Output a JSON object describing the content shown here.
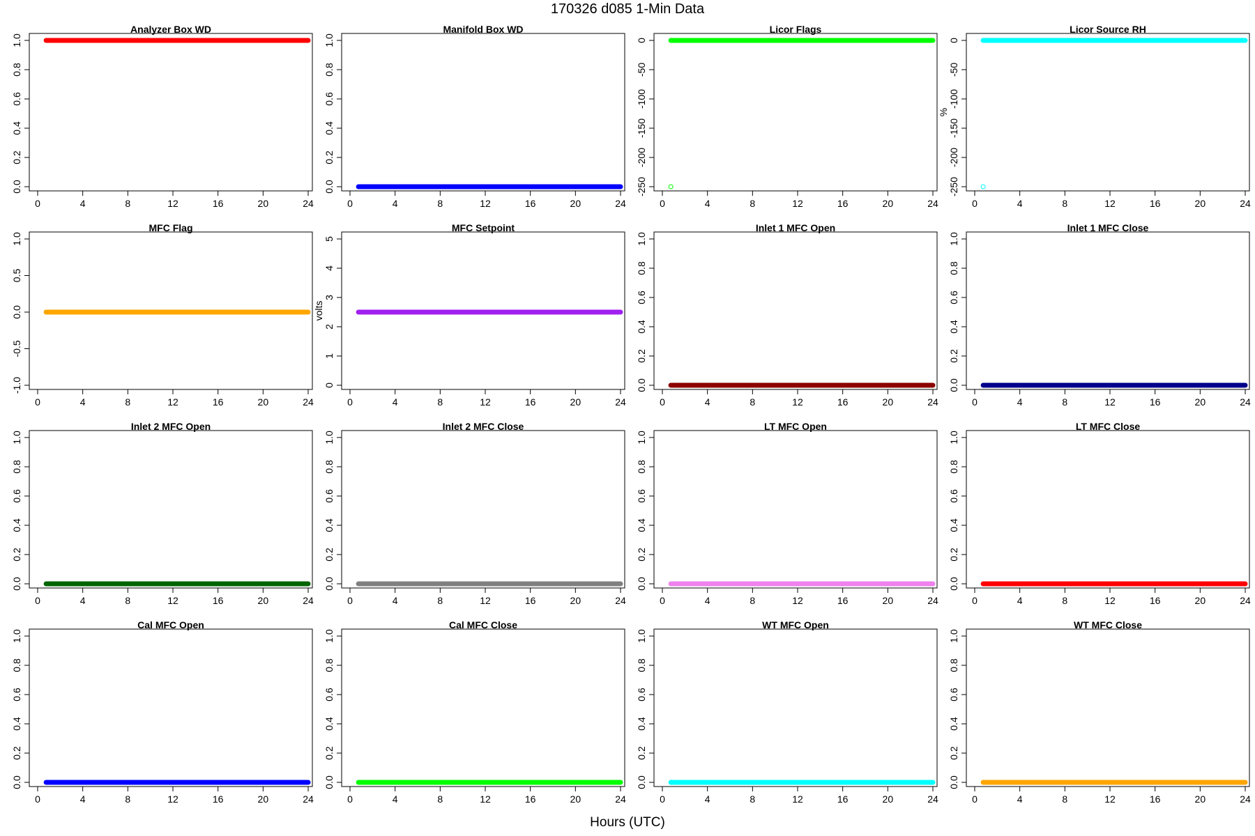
{
  "figure": {
    "title": "170326   d085   1-Min Data",
    "xlabel": "Hours (UTC)"
  },
  "chart_data": [
    {
      "type": "scatter",
      "title": "Analyzer Box WD",
      "ylabel": "",
      "color": "#ff0000",
      "xlim": [
        0,
        24
      ],
      "xticks": [
        0,
        4,
        8,
        12,
        16,
        20,
        24
      ],
      "ylim": [
        0,
        1
      ],
      "yticks": [
        0,
        0.2,
        0.4,
        0.6,
        0.8,
        1
      ],
      "ytick_labels": [
        "0.0",
        "0.2",
        "0.4",
        "0.6",
        "0.8",
        "1.0"
      ],
      "series": [
        {
          "x_start": 0.75,
          "x_end": 24,
          "y": 1
        }
      ],
      "outliers": []
    },
    {
      "type": "scatter",
      "title": "Manifold Box WD",
      "ylabel": "",
      "color": "#0000ff",
      "xlim": [
        0,
        24
      ],
      "xticks": [
        0,
        4,
        8,
        12,
        16,
        20,
        24
      ],
      "ylim": [
        0,
        1
      ],
      "yticks": [
        0,
        0.2,
        0.4,
        0.6,
        0.8,
        1
      ],
      "ytick_labels": [
        "0.0",
        "0.2",
        "0.4",
        "0.6",
        "0.8",
        "1.0"
      ],
      "series": [
        {
          "x_start": 0.75,
          "x_end": 24,
          "y": 0
        }
      ],
      "outliers": []
    },
    {
      "type": "scatter",
      "title": "Licor Flags",
      "ylabel": "",
      "color": "#00ff00",
      "xlim": [
        0,
        24
      ],
      "xticks": [
        0,
        4,
        8,
        12,
        16,
        20,
        24
      ],
      "ylim": [
        -250,
        0
      ],
      "yticks": [
        -250,
        -200,
        -150,
        -100,
        -50,
        0
      ],
      "ytick_labels": [
        "-250",
        "-200",
        "-150",
        "-100",
        "-50",
        "0"
      ],
      "series": [
        {
          "x_start": 0.75,
          "x_end": 24,
          "y": 0
        }
      ],
      "outliers": [
        {
          "x": 0.75,
          "y": -250
        }
      ]
    },
    {
      "type": "scatter",
      "title": "Licor Source RH",
      "ylabel": "%",
      "color": "#00ffff",
      "xlim": [
        0,
        24
      ],
      "xticks": [
        0,
        4,
        8,
        12,
        16,
        20,
        24
      ],
      "ylim": [
        -250,
        0
      ],
      "yticks": [
        -250,
        -200,
        -150,
        -100,
        -50,
        0
      ],
      "ytick_labels": [
        "-250",
        "-200",
        "-150",
        "-100",
        "-50",
        "0"
      ],
      "series": [
        {
          "x_start": 0.75,
          "x_end": 24,
          "y": 0
        }
      ],
      "outliers": [
        {
          "x": 0.75,
          "y": -250
        }
      ]
    },
    {
      "type": "scatter",
      "title": "MFC Flag",
      "ylabel": "",
      "color": "#ffa500",
      "xlim": [
        0,
        24
      ],
      "xticks": [
        0,
        4,
        8,
        12,
        16,
        20,
        24
      ],
      "ylim": [
        -1,
        1
      ],
      "yticks": [
        -1,
        -0.5,
        0,
        0.5,
        1
      ],
      "ytick_labels": [
        "-1.0",
        "-0.5",
        "0.0",
        "0.5",
        "1.0"
      ],
      "series": [
        {
          "x_start": 0.75,
          "x_end": 24,
          "y": 0
        }
      ],
      "outliers": []
    },
    {
      "type": "scatter",
      "title": "MFC Setpoint",
      "ylabel": "volts",
      "color": "#a020f0",
      "xlim": [
        0,
        24
      ],
      "xticks": [
        0,
        4,
        8,
        12,
        16,
        20,
        24
      ],
      "ylim": [
        0,
        5
      ],
      "yticks": [
        0,
        1,
        2,
        3,
        4,
        5
      ],
      "ytick_labels": [
        "0",
        "1",
        "2",
        "3",
        "4",
        "5"
      ],
      "series": [
        {
          "x_start": 0.75,
          "x_end": 24,
          "y": 2.5
        }
      ],
      "outliers": []
    },
    {
      "type": "scatter",
      "title": "Inlet 1 MFC Open",
      "ylabel": "",
      "color": "#8b0000",
      "xlim": [
        0,
        24
      ],
      "xticks": [
        0,
        4,
        8,
        12,
        16,
        20,
        24
      ],
      "ylim": [
        0,
        1
      ],
      "yticks": [
        0,
        0.2,
        0.4,
        0.6,
        0.8,
        1
      ],
      "ytick_labels": [
        "0.0",
        "0.2",
        "0.4",
        "0.6",
        "0.8",
        "1.0"
      ],
      "series": [
        {
          "x_start": 0.75,
          "x_end": 24,
          "y": 0
        }
      ],
      "outliers": []
    },
    {
      "type": "scatter",
      "title": "Inlet 1 MFC Close",
      "ylabel": "",
      "color": "#00008b",
      "xlim": [
        0,
        24
      ],
      "xticks": [
        0,
        4,
        8,
        12,
        16,
        20,
        24
      ],
      "ylim": [
        0,
        1
      ],
      "yticks": [
        0,
        0.2,
        0.4,
        0.6,
        0.8,
        1
      ],
      "ytick_labels": [
        "0.0",
        "0.2",
        "0.4",
        "0.6",
        "0.8",
        "1.0"
      ],
      "series": [
        {
          "x_start": 0.75,
          "x_end": 24,
          "y": 0
        }
      ],
      "outliers": []
    },
    {
      "type": "scatter",
      "title": "Inlet 2 MFC Open",
      "ylabel": "",
      "color": "#006400",
      "xlim": [
        0,
        24
      ],
      "xticks": [
        0,
        4,
        8,
        12,
        16,
        20,
        24
      ],
      "ylim": [
        0,
        1
      ],
      "yticks": [
        0,
        0.2,
        0.4,
        0.6,
        0.8,
        1
      ],
      "ytick_labels": [
        "0.0",
        "0.2",
        "0.4",
        "0.6",
        "0.8",
        "1.0"
      ],
      "series": [
        {
          "x_start": 0.75,
          "x_end": 24,
          "y": 0
        }
      ],
      "outliers": []
    },
    {
      "type": "scatter",
      "title": "Inlet 2 MFC Close",
      "ylabel": "",
      "color": "#808080",
      "xlim": [
        0,
        24
      ],
      "xticks": [
        0,
        4,
        8,
        12,
        16,
        20,
        24
      ],
      "ylim": [
        0,
        1
      ],
      "yticks": [
        0,
        0.2,
        0.4,
        0.6,
        0.8,
        1
      ],
      "ytick_labels": [
        "0.0",
        "0.2",
        "0.4",
        "0.6",
        "0.8",
        "1.0"
      ],
      "series": [
        {
          "x_start": 0.75,
          "x_end": 24,
          "y": 0
        }
      ],
      "outliers": []
    },
    {
      "type": "scatter",
      "title": "LT MFC Open",
      "ylabel": "",
      "color": "#ee82ee",
      "xlim": [
        0,
        24
      ],
      "xticks": [
        0,
        4,
        8,
        12,
        16,
        20,
        24
      ],
      "ylim": [
        0,
        1
      ],
      "yticks": [
        0,
        0.2,
        0.4,
        0.6,
        0.8,
        1
      ],
      "ytick_labels": [
        "0.0",
        "0.2",
        "0.4",
        "0.6",
        "0.8",
        "1.0"
      ],
      "series": [
        {
          "x_start": 0.75,
          "x_end": 24,
          "y": 0
        }
      ],
      "outliers": []
    },
    {
      "type": "scatter",
      "title": "LT MFC Close",
      "ylabel": "",
      "color": "#ff0000",
      "xlim": [
        0,
        24
      ],
      "xticks": [
        0,
        4,
        8,
        12,
        16,
        20,
        24
      ],
      "ylim": [
        0,
        1
      ],
      "yticks": [
        0,
        0.2,
        0.4,
        0.6,
        0.8,
        1
      ],
      "ytick_labels": [
        "0.0",
        "0.2",
        "0.4",
        "0.6",
        "0.8",
        "1.0"
      ],
      "series": [
        {
          "x_start": 0.75,
          "x_end": 24,
          "y": 0
        }
      ],
      "outliers": []
    },
    {
      "type": "scatter",
      "title": "Cal MFC Open",
      "ylabel": "",
      "color": "#0000ff",
      "xlim": [
        0,
        24
      ],
      "xticks": [
        0,
        4,
        8,
        12,
        16,
        20,
        24
      ],
      "ylim": [
        0,
        1
      ],
      "yticks": [
        0,
        0.2,
        0.4,
        0.6,
        0.8,
        1
      ],
      "ytick_labels": [
        "0.0",
        "0.2",
        "0.4",
        "0.6",
        "0.8",
        "1.0"
      ],
      "series": [
        {
          "x_start": 0.75,
          "x_end": 24,
          "y": 0
        }
      ],
      "outliers": []
    },
    {
      "type": "scatter",
      "title": "Cal MFC Close",
      "ylabel": "",
      "color": "#00ff00",
      "xlim": [
        0,
        24
      ],
      "xticks": [
        0,
        4,
        8,
        12,
        16,
        20,
        24
      ],
      "ylim": [
        0,
        1
      ],
      "yticks": [
        0,
        0.2,
        0.4,
        0.6,
        0.8,
        1
      ],
      "ytick_labels": [
        "0.0",
        "0.2",
        "0.4",
        "0.6",
        "0.8",
        "1.0"
      ],
      "series": [
        {
          "x_start": 0.75,
          "x_end": 24,
          "y": 0
        }
      ],
      "outliers": []
    },
    {
      "type": "scatter",
      "title": "WT MFC Open",
      "ylabel": "",
      "color": "#00ffff",
      "xlim": [
        0,
        24
      ],
      "xticks": [
        0,
        4,
        8,
        12,
        16,
        20,
        24
      ],
      "ylim": [
        0,
        1
      ],
      "yticks": [
        0,
        0.2,
        0.4,
        0.6,
        0.8,
        1
      ],
      "ytick_labels": [
        "0.0",
        "0.2",
        "0.4",
        "0.6",
        "0.8",
        "1.0"
      ],
      "series": [
        {
          "x_start": 0.75,
          "x_end": 24,
          "y": 0
        }
      ],
      "outliers": []
    },
    {
      "type": "scatter",
      "title": "WT MFC Close",
      "ylabel": "",
      "color": "#ffa500",
      "xlim": [
        0,
        24
      ],
      "xticks": [
        0,
        4,
        8,
        12,
        16,
        20,
        24
      ],
      "ylim": [
        0,
        1
      ],
      "yticks": [
        0,
        0.2,
        0.4,
        0.6,
        0.8,
        1
      ],
      "ytick_labels": [
        "0.0",
        "0.2",
        "0.4",
        "0.6",
        "0.8",
        "1.0"
      ],
      "series": [
        {
          "x_start": 0.75,
          "x_end": 24,
          "y": 0
        }
      ],
      "outliers": []
    }
  ]
}
